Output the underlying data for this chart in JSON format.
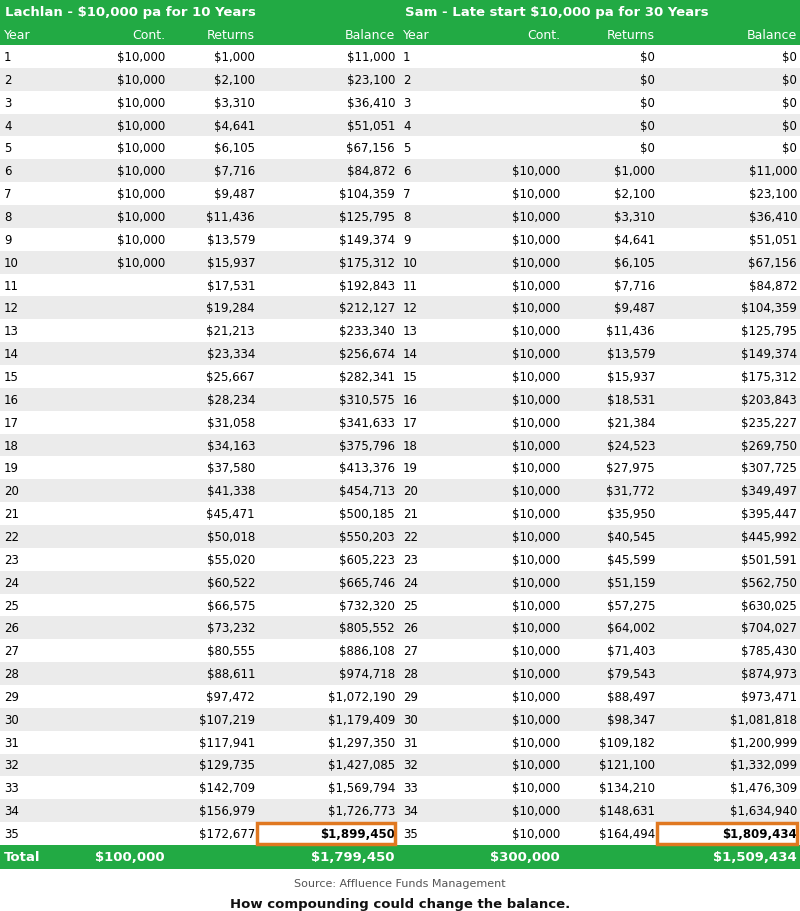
{
  "title_left": "Lachlan - $10,000 pa for 10 Years",
  "title_right": "Sam - Late start $10,000 pa for 30 Years",
  "header_bg": "#22AA44",
  "header_text": "#FFFFFF",
  "highlight_box_color": "#E07820",
  "source_text": "Source: Affluence Funds Management",
  "bottom_title": "How compounding could change the balance.",
  "col_headers": [
    "Year",
    "Cont.",
    "Returns",
    "Balance",
    "Year",
    "Cont.",
    "Returns",
    "Balance"
  ],
  "lachlan_data": [
    [
      1,
      "$10,000",
      "$1,000",
      "$11,000"
    ],
    [
      2,
      "$10,000",
      "$2,100",
      "$23,100"
    ],
    [
      3,
      "$10,000",
      "$3,310",
      "$36,410"
    ],
    [
      4,
      "$10,000",
      "$4,641",
      "$51,051"
    ],
    [
      5,
      "$10,000",
      "$6,105",
      "$67,156"
    ],
    [
      6,
      "$10,000",
      "$7,716",
      "$84,872"
    ],
    [
      7,
      "$10,000",
      "$9,487",
      "$104,359"
    ],
    [
      8,
      "$10,000",
      "$11,436",
      "$125,795"
    ],
    [
      9,
      "$10,000",
      "$13,579",
      "$149,374"
    ],
    [
      10,
      "$10,000",
      "$15,937",
      "$175,312"
    ],
    [
      11,
      "",
      "$17,531",
      "$192,843"
    ],
    [
      12,
      "",
      "$19,284",
      "$212,127"
    ],
    [
      13,
      "",
      "$21,213",
      "$233,340"
    ],
    [
      14,
      "",
      "$23,334",
      "$256,674"
    ],
    [
      15,
      "",
      "$25,667",
      "$282,341"
    ],
    [
      16,
      "",
      "$28,234",
      "$310,575"
    ],
    [
      17,
      "",
      "$31,058",
      "$341,633"
    ],
    [
      18,
      "",
      "$34,163",
      "$375,796"
    ],
    [
      19,
      "",
      "$37,580",
      "$413,376"
    ],
    [
      20,
      "",
      "$41,338",
      "$454,713"
    ],
    [
      21,
      "",
      "$45,471",
      "$500,185"
    ],
    [
      22,
      "",
      "$50,018",
      "$550,203"
    ],
    [
      23,
      "",
      "$55,020",
      "$605,223"
    ],
    [
      24,
      "",
      "$60,522",
      "$665,746"
    ],
    [
      25,
      "",
      "$66,575",
      "$732,320"
    ],
    [
      26,
      "",
      "$73,232",
      "$805,552"
    ],
    [
      27,
      "",
      "$80,555",
      "$886,108"
    ],
    [
      28,
      "",
      "$88,611",
      "$974,718"
    ],
    [
      29,
      "",
      "$97,472",
      "$1,072,190"
    ],
    [
      30,
      "",
      "$107,219",
      "$1,179,409"
    ],
    [
      31,
      "",
      "$117,941",
      "$1,297,350"
    ],
    [
      32,
      "",
      "$129,735",
      "$1,427,085"
    ],
    [
      33,
      "",
      "$142,709",
      "$1,569,794"
    ],
    [
      34,
      "",
      "$156,979",
      "$1,726,773"
    ],
    [
      35,
      "",
      "$172,677",
      "$1,899,450"
    ]
  ],
  "sam_data": [
    [
      1,
      "",
      "",
      "$0"
    ],
    [
      2,
      "",
      "",
      "$0"
    ],
    [
      3,
      "",
      "",
      "$0"
    ],
    [
      4,
      "",
      "",
      "$0"
    ],
    [
      5,
      "",
      "",
      "$0"
    ],
    [
      6,
      "$10,000",
      "$1,000",
      "$11,000"
    ],
    [
      7,
      "$10,000",
      "$2,100",
      "$23,100"
    ],
    [
      8,
      "$10,000",
      "$3,310",
      "$36,410"
    ],
    [
      9,
      "$10,000",
      "$4,641",
      "$51,051"
    ],
    [
      10,
      "$10,000",
      "$6,105",
      "$67,156"
    ],
    [
      11,
      "$10,000",
      "$7,716",
      "$84,872"
    ],
    [
      12,
      "$10,000",
      "$9,487",
      "$104,359"
    ],
    [
      13,
      "$10,000",
      "$11,436",
      "$125,795"
    ],
    [
      14,
      "$10,000",
      "$13,579",
      "$149,374"
    ],
    [
      15,
      "$10,000",
      "$15,937",
      "$175,312"
    ],
    [
      16,
      "$10,000",
      "$18,531",
      "$203,843"
    ],
    [
      17,
      "$10,000",
      "$21,384",
      "$235,227"
    ],
    [
      18,
      "$10,000",
      "$24,523",
      "$269,750"
    ],
    [
      19,
      "$10,000",
      "$27,975",
      "$307,725"
    ],
    [
      20,
      "$10,000",
      "$31,772",
      "$349,497"
    ],
    [
      21,
      "$10,000",
      "$35,950",
      "$395,447"
    ],
    [
      22,
      "$10,000",
      "$40,545",
      "$445,992"
    ],
    [
      23,
      "$10,000",
      "$45,599",
      "$501,591"
    ],
    [
      24,
      "$10,000",
      "$51,159",
      "$562,750"
    ],
    [
      25,
      "$10,000",
      "$57,275",
      "$630,025"
    ],
    [
      26,
      "$10,000",
      "$64,002",
      "$704,027"
    ],
    [
      27,
      "$10,000",
      "$71,403",
      "$785,430"
    ],
    [
      28,
      "$10,000",
      "$79,543",
      "$874,973"
    ],
    [
      29,
      "$10,000",
      "$88,497",
      "$973,471"
    ],
    [
      30,
      "$10,000",
      "$98,347",
      "$1,081,818"
    ],
    [
      31,
      "$10,000",
      "$109,182",
      "$1,200,999"
    ],
    [
      32,
      "$10,000",
      "$121,100",
      "$1,332,099"
    ],
    [
      33,
      "$10,000",
      "$134,210",
      "$1,476,309"
    ],
    [
      34,
      "$10,000",
      "$148,631",
      "$1,634,940"
    ],
    [
      35,
      "$10,000",
      "$164,494",
      "$1,809,434"
    ]
  ],
  "lachlan_total": [
    "Total",
    "$100,000",
    "$1,799,450"
  ],
  "sam_total": [
    "",
    "$300,000",
    "$1,509,434"
  ],
  "sam_returns_1to5": [
    "$0",
    "$0",
    "$0",
    "$0",
    "$0"
  ]
}
